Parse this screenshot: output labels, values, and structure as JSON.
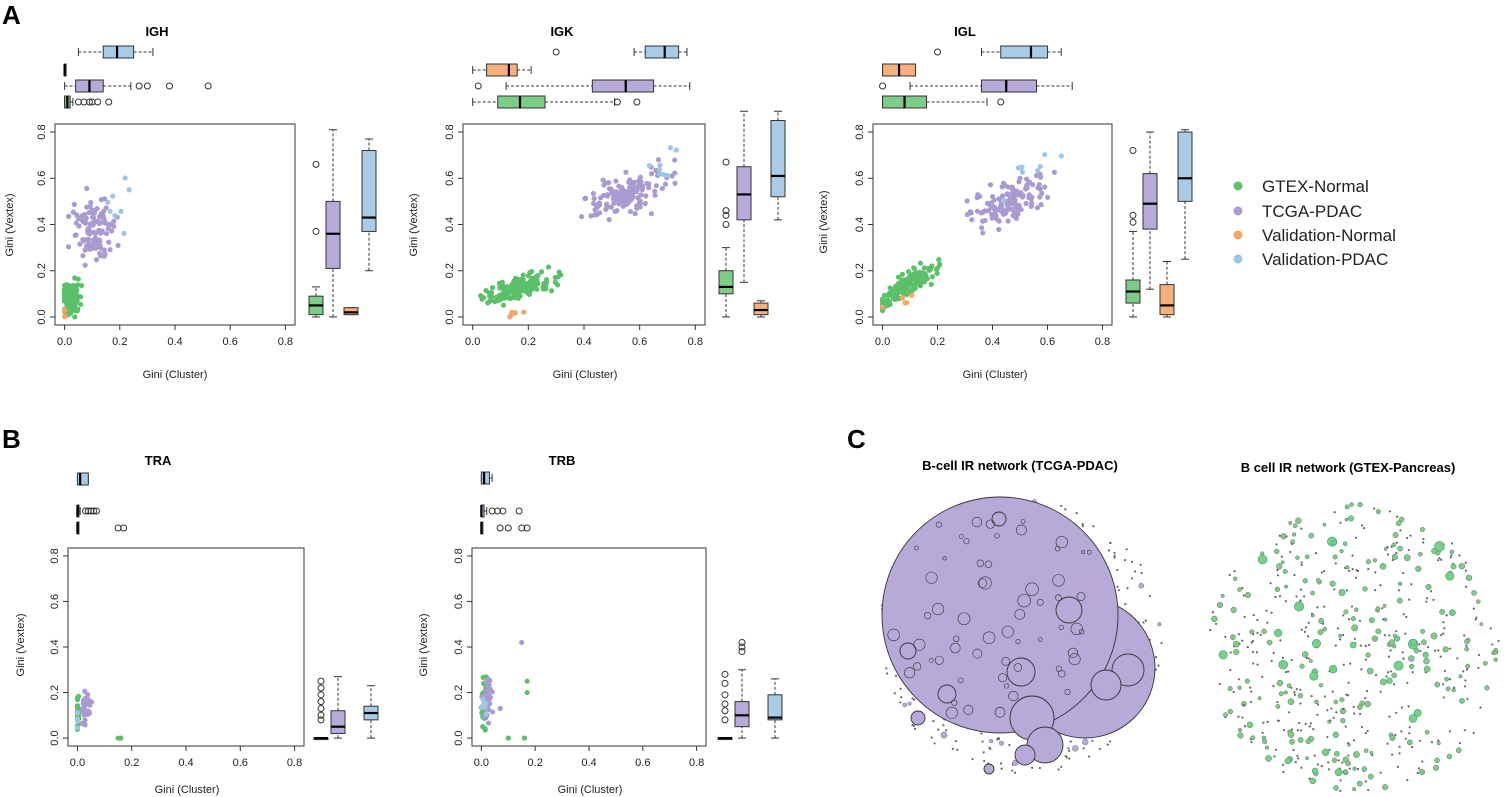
{
  "panel_labels": [
    "A",
    "B",
    "C"
  ],
  "legend": [
    {
      "label": "GTEX-Normal",
      "color": "#5cbf6a"
    },
    {
      "label": "TCGA-PDAC",
      "color": "#a99bd0"
    },
    {
      "label": "Validation-Normal",
      "color": "#f4a567"
    },
    {
      "label": "Validation-PDAC",
      "color": "#9ec5e4"
    }
  ],
  "colors": {
    "gtex_fill": "#7dcc87",
    "tcga_fill": "#b7aad9",
    "valn_fill": "#f6b07c",
    "valp_fill": "#a9cbe6",
    "gtex_pt": "#5cbf6a",
    "tcga_pt": "#a99bd0",
    "valn_pt": "#f4a567",
    "valp_pt": "#9ec5e4"
  },
  "chart_data": [
    {
      "type": "scatter",
      "panel": "A",
      "title": "IGH",
      "xlabel": "Gini (Cluster)",
      "ylabel": "Gini (Vextex)",
      "xlim": [
        0,
        0.8
      ],
      "ylim": [
        0,
        0.8
      ],
      "xticks": [
        "0.0",
        "0.2",
        "0.4",
        "0.6",
        "0.8"
      ],
      "yticks": [
        "0.0",
        "0.2",
        "0.4",
        "0.6",
        "0.8"
      ],
      "series": [
        {
          "name": "GTEX-Normal",
          "x_center": 0.02,
          "x_spread": 0.03,
          "y_center": 0.08,
          "y_spread": 0.06,
          "n": 120
        },
        {
          "name": "TCGA-PDAC",
          "x_center": 0.1,
          "x_spread": 0.07,
          "y_center": 0.38,
          "y_spread": 0.14,
          "n": 110
        },
        {
          "name": "Validation-Normal",
          "x_center": 0.0,
          "x_spread": 0.005,
          "y_center": 0.02,
          "y_spread": 0.02,
          "n": 5
        },
        {
          "name": "Validation-PDAC",
          "x_center": 0.19,
          "x_spread": 0.05,
          "y_center": 0.5,
          "y_spread": 0.15,
          "n": 8
        }
      ],
      "box_x": [
        {
          "name": "Validation-PDAC",
          "whisker_low": 0.05,
          "q1": 0.14,
          "median": 0.19,
          "q3": 0.25,
          "whisker_high": 0.32,
          "outliers": []
        },
        {
          "name": "Validation-Normal",
          "whisker_low": 0.0,
          "q1": 0.0,
          "median": 0.0,
          "q3": 0.005,
          "whisker_high": 0.005,
          "outliers": []
        },
        {
          "name": "TCGA-PDAC",
          "whisker_low": 0.0,
          "q1": 0.04,
          "median": 0.09,
          "q3": 0.14,
          "whisker_high": 0.24,
          "outliers": [
            0.27,
            0.3,
            0.38,
            0.52
          ]
        },
        {
          "name": "GTEX-Normal",
          "whisker_low": 0.0,
          "q1": 0.0,
          "median": 0.01,
          "q3": 0.02,
          "whisker_high": 0.03,
          "outliers": [
            0.05,
            0.07,
            0.09,
            0.1,
            0.12,
            0.16
          ]
        }
      ],
      "box_y": [
        {
          "name": "GTEX-Normal",
          "whisker_low": 0.0,
          "q1": 0.01,
          "median": 0.05,
          "q3": 0.09,
          "whisker_high": 0.13,
          "outliers": [
            0.37,
            0.66
          ]
        },
        {
          "name": "TCGA-PDAC",
          "whisker_low": 0.0,
          "q1": 0.21,
          "median": 0.36,
          "q3": 0.5,
          "whisker_high": 0.81,
          "outliers": []
        },
        {
          "name": "Validation-Normal",
          "whisker_low": 0.01,
          "q1": 0.01,
          "median": 0.02,
          "q3": 0.04,
          "whisker_high": 0.04,
          "outliers": []
        },
        {
          "name": "Validation-PDAC",
          "whisker_low": 0.2,
          "q1": 0.37,
          "median": 0.43,
          "q3": 0.72,
          "whisker_high": 0.77,
          "outliers": []
        }
      ]
    },
    {
      "type": "scatter",
      "panel": "A",
      "title": "IGK",
      "xlabel": "Gini (Cluster)",
      "ylabel": "Gini (Vextex)",
      "xlim": [
        0,
        0.8
      ],
      "ylim": [
        0,
        0.8
      ],
      "xticks": [
        "0.0",
        "0.2",
        "0.4",
        "0.6",
        "0.8"
      ],
      "yticks": [
        "0.0",
        "0.2",
        "0.4",
        "0.6",
        "0.8"
      ],
      "series": [
        {
          "name": "GTEX-Normal",
          "x_center": 0.17,
          "x_spread": 0.12,
          "y_center": 0.13,
          "y_spread": 0.08,
          "n": 150
        },
        {
          "name": "TCGA-PDAC",
          "x_center": 0.55,
          "x_spread": 0.13,
          "y_center": 0.53,
          "y_spread": 0.15,
          "n": 140
        },
        {
          "name": "Validation-Normal",
          "x_center": 0.12,
          "x_spread": 0.06,
          "y_center": 0.01,
          "y_spread": 0.02,
          "n": 5
        },
        {
          "name": "Validation-PDAC",
          "x_center": 0.68,
          "x_spread": 0.05,
          "y_center": 0.66,
          "y_spread": 0.12,
          "n": 8
        }
      ],
      "box_x": [
        {
          "name": "Validation-PDAC",
          "whisker_low": 0.58,
          "q1": 0.62,
          "median": 0.69,
          "q3": 0.74,
          "whisker_high": 0.77,
          "outliers": [
            0.3
          ]
        },
        {
          "name": "Validation-Normal",
          "whisker_low": 0.0,
          "q1": 0.05,
          "median": 0.13,
          "q3": 0.16,
          "whisker_high": 0.21,
          "outliers": []
        },
        {
          "name": "TCGA-PDAC",
          "whisker_low": 0.12,
          "q1": 0.43,
          "median": 0.55,
          "q3": 0.65,
          "whisker_high": 0.78,
          "outliers": [
            0.02
          ]
        },
        {
          "name": "GTEX-Normal",
          "whisker_low": 0.0,
          "q1": 0.09,
          "median": 0.17,
          "q3": 0.26,
          "whisker_high": 0.51,
          "outliers": [
            0.52,
            0.59
          ]
        }
      ],
      "box_y": [
        {
          "name": "GTEX-Normal",
          "whisker_low": 0.0,
          "q1": 0.1,
          "median": 0.13,
          "q3": 0.2,
          "whisker_high": 0.3,
          "outliers": [
            0.4,
            0.44,
            0.46,
            0.67
          ]
        },
        {
          "name": "TCGA-PDAC",
          "whisker_low": 0.15,
          "q1": 0.42,
          "median": 0.53,
          "q3": 0.65,
          "whisker_high": 0.89,
          "outliers": []
        },
        {
          "name": "Validation-Normal",
          "whisker_low": 0.0,
          "q1": 0.01,
          "median": 0.03,
          "q3": 0.06,
          "whisker_high": 0.07,
          "outliers": []
        },
        {
          "name": "Validation-PDAC",
          "whisker_low": 0.42,
          "q1": 0.52,
          "median": 0.61,
          "q3": 0.85,
          "whisker_high": 0.89,
          "outliers": []
        }
      ]
    },
    {
      "type": "scatter",
      "panel": "A",
      "title": "IGL",
      "xlabel": "Gini (Cluster)",
      "ylabel": "Gini (Vextex)",
      "xlim": [
        0,
        0.8
      ],
      "ylim": [
        0,
        0.8
      ],
      "xticks": [
        "0.0",
        "0.2",
        "0.4",
        "0.6",
        "0.8"
      ],
      "yticks": [
        "0.0",
        "0.2",
        "0.4",
        "0.6",
        "0.8"
      ],
      "series": [
        {
          "name": "GTEX-Normal",
          "x_center": 0.09,
          "x_spread": 0.09,
          "y_center": 0.14,
          "y_spread": 0.09,
          "n": 140
        },
        {
          "name": "TCGA-PDAC",
          "x_center": 0.46,
          "x_spread": 0.13,
          "y_center": 0.5,
          "y_spread": 0.15,
          "n": 130
        },
        {
          "name": "Validation-Normal",
          "x_center": 0.06,
          "x_spread": 0.06,
          "y_center": 0.06,
          "y_spread": 0.06,
          "n": 6
        },
        {
          "name": "Validation-PDAC",
          "x_center": 0.55,
          "x_spread": 0.08,
          "y_center": 0.64,
          "y_spread": 0.12,
          "n": 8
        }
      ],
      "box_x": [
        {
          "name": "Validation-PDAC",
          "whisker_low": 0.36,
          "q1": 0.43,
          "median": 0.54,
          "q3": 0.6,
          "whisker_high": 0.65,
          "outliers": [
            0.2
          ]
        },
        {
          "name": "Validation-Normal",
          "whisker_low": 0.0,
          "q1": 0.0,
          "median": 0.06,
          "q3": 0.12,
          "whisker_high": 0.12,
          "outliers": []
        },
        {
          "name": "TCGA-PDAC",
          "whisker_low": 0.1,
          "q1": 0.36,
          "median": 0.45,
          "q3": 0.56,
          "whisker_high": 0.69,
          "outliers": [
            0.0
          ]
        },
        {
          "name": "GTEX-Normal",
          "whisker_low": 0.0,
          "q1": 0.0,
          "median": 0.08,
          "q3": 0.16,
          "whisker_high": 0.38,
          "outliers": [
            0.43
          ]
        }
      ],
      "box_y": [
        {
          "name": "GTEX-Normal",
          "whisker_low": 0.0,
          "q1": 0.06,
          "median": 0.11,
          "q3": 0.16,
          "whisker_high": 0.37,
          "outliers": [
            0.41,
            0.44,
            0.72
          ]
        },
        {
          "name": "TCGA-PDAC",
          "whisker_low": 0.12,
          "q1": 0.38,
          "median": 0.49,
          "q3": 0.62,
          "whisker_high": 0.8,
          "outliers": []
        },
        {
          "name": "Validation-Normal",
          "whisker_low": 0.0,
          "q1": 0.01,
          "median": 0.05,
          "q3": 0.14,
          "whisker_high": 0.24,
          "outliers": []
        },
        {
          "name": "Validation-PDAC",
          "whisker_low": 0.25,
          "q1": 0.5,
          "median": 0.6,
          "q3": 0.8,
          "whisker_high": 0.81,
          "outliers": []
        }
      ]
    },
    {
      "type": "scatter",
      "panel": "B",
      "title": "TRA",
      "xlabel": "Gini (Cluster)",
      "ylabel": "Gini (Vextex)",
      "xlim": [
        0,
        0.8
      ],
      "ylim": [
        0,
        0.8
      ],
      "xticks": [
        "0.0",
        "0.2",
        "0.4",
        "0.6",
        "0.8"
      ],
      "yticks": [
        "0.0",
        "0.2",
        "0.4",
        "0.6",
        "0.8"
      ],
      "series": [
        {
          "name": "GTEX-Normal",
          "x_center": 0.0,
          "x_spread": 0.005,
          "y_center": 0.12,
          "y_spread": 0.08,
          "n": 25
        },
        {
          "name": "TCGA-PDAC",
          "x_center": 0.03,
          "x_spread": 0.02,
          "y_center": 0.14,
          "y_spread": 0.07,
          "n": 30
        },
        {
          "name": "Validation-PDAC",
          "x_center": 0.0,
          "x_spread": 0.005,
          "y_center": 0.1,
          "y_spread": 0.06,
          "n": 5
        }
      ],
      "extra_points": [
        {
          "series": "GTEX-Normal",
          "x": 0.15,
          "y": 0.0
        },
        {
          "series": "GTEX-Normal",
          "x": 0.16,
          "y": 0.0
        }
      ],
      "box_x": [
        {
          "name": "Validation-PDAC",
          "whisker_low": 0.0,
          "q1": 0.0,
          "median": 0.01,
          "q3": 0.04,
          "whisker_high": 0.04,
          "outliers": []
        },
        {
          "name": "TCGA-PDAC",
          "whisker_low": 0.0,
          "q1": 0.0,
          "median": 0.0,
          "q3": 0.0,
          "whisker_high": 0.01,
          "outliers": [
            0.03,
            0.04,
            0.05,
            0.06,
            0.07
          ]
        },
        {
          "name": "GTEX-Normal",
          "whisker_low": 0.0,
          "q1": 0.0,
          "median": 0.0,
          "q3": 0.0,
          "whisker_high": 0.0,
          "outliers": [
            0.15,
            0.17
          ]
        }
      ],
      "box_y": [
        {
          "name": "GTEX-Normal",
          "whisker_low": 0.0,
          "q1": 0.0,
          "median": 0.0,
          "q3": 0.0,
          "whisker_high": 0.0,
          "outliers": [
            0.08,
            0.1,
            0.13,
            0.16,
            0.19,
            0.22,
            0.25
          ]
        },
        {
          "name": "TCGA-PDAC",
          "whisker_low": 0.0,
          "q1": 0.02,
          "median": 0.05,
          "q3": 0.12,
          "whisker_high": 0.27,
          "outliers": []
        },
        {
          "name": "Validation-PDAC",
          "whisker_low": 0.0,
          "q1": 0.08,
          "median": 0.11,
          "q3": 0.14,
          "whisker_high": 0.23,
          "outliers": []
        }
      ]
    },
    {
      "type": "scatter",
      "panel": "B",
      "title": "TRB",
      "xlabel": "Gini (Cluster)",
      "ylabel": "Gini (Vextex)",
      "xlim": [
        0,
        0.8
      ],
      "ylim": [
        0,
        0.8
      ],
      "xticks": [
        "0.0",
        "0.2",
        "0.4",
        "0.6",
        "0.8"
      ],
      "yticks": [
        "0.0",
        "0.2",
        "0.4",
        "0.6",
        "0.8"
      ],
      "series": [
        {
          "name": "GTEX-Normal",
          "x_center": 0.01,
          "x_spread": 0.01,
          "y_center": 0.16,
          "y_spread": 0.1,
          "n": 30
        },
        {
          "name": "TCGA-PDAC",
          "x_center": 0.02,
          "x_spread": 0.02,
          "y_center": 0.18,
          "y_spread": 0.09,
          "n": 35
        },
        {
          "name": "Validation-PDAC",
          "x_center": 0.01,
          "x_spread": 0.01,
          "y_center": 0.12,
          "y_spread": 0.08,
          "n": 5
        }
      ],
      "extra_points": [
        {
          "series": "GTEX-Normal",
          "x": 0.17,
          "y": 0.25
        },
        {
          "series": "GTEX-Normal",
          "x": 0.17,
          "y": 0.2
        },
        {
          "series": "GTEX-Normal",
          "x": 0.16,
          "y": 0.0
        },
        {
          "series": "GTEX-Normal",
          "x": 0.1,
          "y": 0.0
        },
        {
          "series": "TCGA-PDAC",
          "x": 0.15,
          "y": 0.42
        },
        {
          "series": "TCGA-PDAC",
          "x": 0.07,
          "y": 0.13
        }
      ],
      "box_x": [
        {
          "name": "Validation-PDAC",
          "whisker_low": 0.0,
          "q1": 0.0,
          "median": 0.01,
          "q3": 0.03,
          "whisker_high": 0.04,
          "outliers": []
        },
        {
          "name": "TCGA-PDAC",
          "whisker_low": 0.0,
          "q1": 0.0,
          "median": 0.0,
          "q3": 0.01,
          "whisker_high": 0.02,
          "outliers": [
            0.04,
            0.06,
            0.08,
            0.14
          ]
        },
        {
          "name": "GTEX-Normal",
          "whisker_low": 0.0,
          "q1": 0.0,
          "median": 0.0,
          "q3": 0.0,
          "whisker_high": 0.0,
          "outliers": [
            0.07,
            0.1,
            0.15,
            0.17
          ]
        }
      ],
      "box_y": [
        {
          "name": "GTEX-Normal",
          "whisker_low": 0.0,
          "q1": 0.0,
          "median": 0.0,
          "q3": 0.0,
          "whisker_high": 0.0,
          "outliers": [
            0.08,
            0.12,
            0.15,
            0.19,
            0.24,
            0.28
          ]
        },
        {
          "name": "TCGA-PDAC",
          "whisker_low": 0.0,
          "q1": 0.05,
          "median": 0.1,
          "q3": 0.16,
          "whisker_high": 0.3,
          "outliers": [
            0.38,
            0.4,
            0.42
          ]
        },
        {
          "name": "Validation-PDAC",
          "whisker_low": 0.0,
          "q1": 0.08,
          "median": 0.09,
          "q3": 0.19,
          "whisker_high": 0.26,
          "outliers": []
        }
      ]
    }
  ],
  "networks": [
    {
      "title": "B-cell IR network (TCGA-PDAC)",
      "dominant_color": "#a99bd0",
      "node_fill": "#b7aad9"
    },
    {
      "title": "B cell IR network (GTEX-Pancreas)",
      "dominant_color": "#5cbf6a",
      "node_fill": "#7dcc87"
    }
  ]
}
